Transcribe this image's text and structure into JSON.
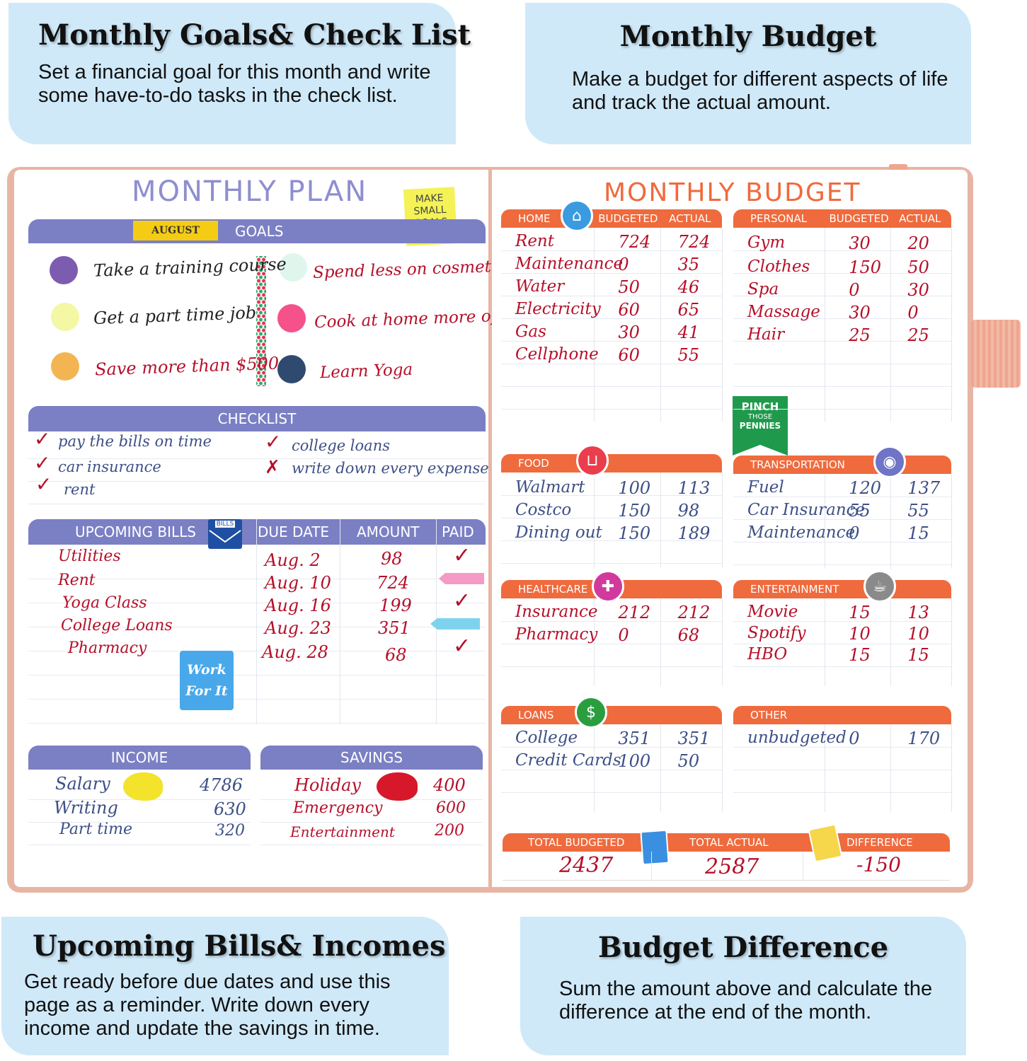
{
  "callouts": {
    "tl": {
      "title": "Monthly Goals& Check List",
      "desc": "Set a financial goal for this month and write some have-to-do tasks in the check list."
    },
    "tr": {
      "title": "Monthly Budget",
      "desc": "Make a budget for different aspects of life and track the actual amount."
    },
    "bl": {
      "title": "Upcoming Bills& Incomes",
      "desc": "Get ready before due dates and use this page as a reminder. Write down every income and update the savings in time."
    },
    "br": {
      "title": "Budget Difference",
      "desc": "Sum the amount above and calculate the difference at the end of the month."
    }
  },
  "plan": {
    "title": "MONTHLY PLAN",
    "sticky": "MAKE SMALL GOALS",
    "month": "AUGUST",
    "goals_label": "GOALS",
    "goals": [
      "Take a training course",
      "Get a part time job",
      "Save more than $500",
      "Spend less on cosmetics",
      "Cook at home more often",
      "Learn Yoga"
    ],
    "checklist_label": "CHECKLIST",
    "checklist": [
      "pay the bills on time",
      "car insurance",
      "rent",
      "college loans",
      "write down every expense"
    ],
    "bills_label": "UPCOMING BILLS",
    "bills_icon": "BILLS",
    "due_label": "DUE DATE",
    "amount_label": "AMOUNT",
    "paid_label": "PAID",
    "bills": [
      {
        "name": "Utilities",
        "due": "Aug. 2",
        "amount": "98"
      },
      {
        "name": "Rent",
        "due": "Aug. 10",
        "amount": "724"
      },
      {
        "name": "Yoga Class",
        "due": "Aug. 16",
        "amount": "199"
      },
      {
        "name": "College Loans",
        "due": "Aug. 23",
        "amount": "351"
      },
      {
        "name": "Pharmacy",
        "due": "Aug. 28",
        "amount": "68"
      }
    ],
    "work": "Work For It",
    "income_label": "INCOME",
    "income": [
      {
        "name": "Salary",
        "value": "4786"
      },
      {
        "name": "Writing",
        "value": "630"
      },
      {
        "name": "Part time",
        "value": "320"
      }
    ],
    "savings_label": "SAVINGS",
    "savings": [
      {
        "name": "Holiday",
        "value": "400"
      },
      {
        "name": "Emergency",
        "value": "600"
      },
      {
        "name": "Entertainment",
        "value": "200"
      }
    ]
  },
  "budget": {
    "title": "MONTHLY BUDGET",
    "budgeted": "BUDGETED",
    "actual": "ACTUAL",
    "pinch": {
      "l1": "PINCH",
      "l2": "THOSE",
      "l3": "PENNIES"
    },
    "home": {
      "label": "HOME",
      "rows": [
        [
          "Rent",
          "724",
          "724"
        ],
        [
          "Maintenance",
          "0",
          "35"
        ],
        [
          "Water",
          "50",
          "46"
        ],
        [
          "Electricity",
          "60",
          "65"
        ],
        [
          "Gas",
          "30",
          "41"
        ],
        [
          "Cellphone",
          "60",
          "55"
        ]
      ]
    },
    "personal": {
      "label": "PERSONAL",
      "rows": [
        [
          "Gym",
          "30",
          "20"
        ],
        [
          "Clothes",
          "150",
          "50"
        ],
        [
          "Spa",
          "0",
          "30"
        ],
        [
          "Massage",
          "30",
          "0"
        ],
        [
          "Hair",
          "25",
          "25"
        ]
      ]
    },
    "food": {
      "label": "FOOD",
      "rows": [
        [
          "Walmart",
          "100",
          "113"
        ],
        [
          "Costco",
          "150",
          "98"
        ],
        [
          "Dining out",
          "150",
          "189"
        ]
      ]
    },
    "transportation": {
      "label": "TRANSPORTATION",
      "rows": [
        [
          "Fuel",
          "120",
          "137"
        ],
        [
          "Car Insurance",
          "55",
          "55"
        ],
        [
          "Maintenance",
          "0",
          "15"
        ]
      ]
    },
    "healthcare": {
      "label": "HEALTHCARE",
      "rows": [
        [
          "Insurance",
          "212",
          "212"
        ],
        [
          "Pharmacy",
          "0",
          "68"
        ]
      ]
    },
    "entertainment": {
      "label": "ENTERTAINMENT",
      "rows": [
        [
          "Movie",
          "15",
          "13"
        ],
        [
          "Spotify",
          "10",
          "10"
        ],
        [
          "HBO",
          "15",
          "15"
        ]
      ]
    },
    "loans": {
      "label": "LOANS",
      "rows": [
        [
          "College",
          "351",
          "351"
        ],
        [
          "Credit Cards",
          "100",
          "50"
        ]
      ]
    },
    "other": {
      "label": "OTHER",
      "rows": [
        [
          "unbudgeted",
          "0",
          "170"
        ]
      ]
    },
    "totals": {
      "budgeted_label": "TOTAL BUDGETED",
      "budgeted": "2437",
      "actual_label": "TOTAL ACTUAL",
      "actual": "2587",
      "diff_label": "DIFFERENCE",
      "diff": "-150"
    }
  },
  "colors": {
    "purple_bar": "#7b7fc4",
    "orange_bar": "#ef6a3d",
    "callout_bg": "#cfe9f9",
    "ink_red": "#b5102a",
    "ink_blue": "#3d4f86"
  }
}
